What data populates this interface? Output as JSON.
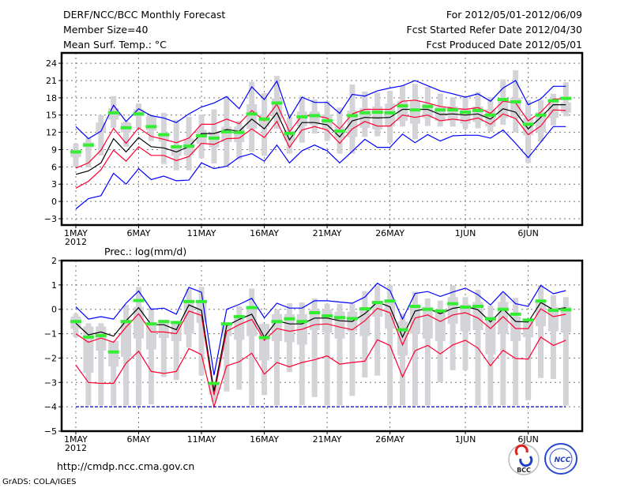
{
  "header": {
    "title": "DERF/NCC/BCC Monthly Forecast",
    "member_size": "Member Size=40",
    "for_range": "For 2012/05/01-2012/06/09",
    "started_refer": "Fcst Started Refer Date 2012/04/30",
    "produced": "Fcst Produced Date 2012/05/01"
  },
  "footer": {
    "url": "http://cmdp.ncc.cma.gov.cn",
    "credit": "GrADS: COLA/IGES",
    "logo_bcc": "BCC",
    "logo_ncc": "NCC"
  },
  "colors": {
    "ens_max_min": "#0000ff",
    "ens_quartile": "#ff0033",
    "ens_mean": "#000000",
    "observed": "#33ee33",
    "bar": "#d4d4d8"
  },
  "chart_data": [
    {
      "type": "line",
      "title": "Mean Surf. Temp.: °C",
      "xlabel": "",
      "ylabel": "",
      "x_days_from": "2012-05-01",
      "xlim": [
        -1.13,
        40.3
      ],
      "ylim": [
        -4.1,
        25.8
      ],
      "yticks": [
        -3,
        0,
        3,
        6,
        9,
        12,
        15,
        18,
        21,
        24
      ],
      "xticks": [
        {
          "day": 0,
          "label": "1MAY",
          "sub": "2012"
        },
        {
          "day": 5,
          "label": "6MAY"
        },
        {
          "day": 10,
          "label": "11MAY"
        },
        {
          "day": 15,
          "label": "16MAY"
        },
        {
          "day": 20,
          "label": "21MAY"
        },
        {
          "day": 25,
          "label": "26MAY"
        },
        {
          "day": 31,
          "label": "1JUN"
        },
        {
          "day": 36,
          "label": "6JUN"
        }
      ],
      "grid": true,
      "bars_min_q1_q3_max": [
        [
          6.0,
          7.7,
          8.9,
          10.1
        ],
        [
          5.9,
          9.4,
          10.3,
          11.0
        ],
        [
          8.0,
          12.0,
          13.7,
          15.0
        ],
        [
          12.8,
          14.2,
          16.2,
          18.3
        ],
        [
          9.5,
          12.0,
          13.7,
          13.9
        ],
        [
          12.7,
          14.8,
          16.0,
          17.0
        ],
        [
          10.5,
          12.3,
          14.8,
          15.1
        ],
        [
          6.5,
          10.4,
          11.7,
          15.4
        ],
        [
          5.4,
          7.9,
          9.7,
          14.2
        ],
        [
          5.4,
          8.0,
          10.9,
          14.7
        ],
        [
          7.5,
          10.0,
          12.4,
          15.1
        ],
        [
          6.6,
          9.4,
          12.0,
          16.0
        ],
        [
          6.1,
          10.3,
          13.0,
          18.3
        ],
        [
          7.3,
          10.3,
          13.0,
          14.0
        ],
        [
          8.6,
          12.6,
          16.9,
          20.8
        ],
        [
          7.9,
          13.0,
          15.0,
          18.8
        ],
        [
          12.6,
          14.3,
          17.9,
          21.8
        ],
        [
          8.3,
          10.5,
          12.3,
          14.6
        ],
        [
          10.2,
          13.1,
          15.6,
          18.3
        ],
        [
          11.8,
          13.3,
          15.6,
          17.7
        ],
        [
          10.5,
          12.6,
          15.1,
          17.4
        ],
        [
          8.3,
          11.0,
          13.0,
          16.3
        ],
        [
          8.3,
          11.2,
          15.8,
          20.3
        ],
        [
          11.2,
          12.8,
          16.2,
          19.1
        ],
        [
          11.3,
          12.5,
          16.5,
          18.9
        ],
        [
          10.2,
          13.0,
          17.0,
          19.2
        ],
        [
          13.0,
          14.0,
          17.5,
          20.1
        ],
        [
          10.8,
          13.5,
          17.5,
          20.4
        ],
        [
          13.1,
          14.5,
          17.0,
          19.9
        ],
        [
          13.0,
          14.0,
          16.5,
          18.7
        ],
        [
          13.0,
          14.0,
          16.5,
          18.1
        ],
        [
          12.6,
          13.5,
          16.0,
          18.1
        ],
        [
          12.7,
          13.8,
          16.5,
          19.0
        ],
        [
          12.1,
          13.0,
          16.0,
          18.1
        ],
        [
          13.3,
          14.5,
          17.8,
          21.2
        ],
        [
          12.0,
          14.5,
          18.0,
          22.8
        ],
        [
          6.7,
          11.5,
          14.5,
          17.6
        ],
        [
          10.4,
          12.0,
          15.5,
          17.6
        ],
        [
          13.2,
          14.5,
          17.5,
          18.7
        ],
        [
          14.8,
          15.4,
          17.2,
          20.7
        ]
      ],
      "series": [
        {
          "name": "max",
          "color": "#0000ff",
          "values": [
            13.0,
            10.9,
            12.2,
            16.7,
            13.9,
            16.1,
            14.9,
            14.5,
            13.7,
            15.2,
            16.4,
            17.1,
            18.2,
            16.1,
            19.9,
            17.7,
            20.9,
            14.5,
            18.1,
            17.2,
            17.2,
            15.3,
            18.6,
            18.3,
            19.2,
            19.7,
            20.1,
            21.0,
            20.1,
            19.2,
            18.7,
            18.1,
            18.7,
            17.4,
            19.7,
            21.0,
            16.8,
            17.8,
            20.0,
            20.0
          ]
        },
        {
          "name": "upper",
          "color": "#ff0033",
          "values": [
            5.8,
            6.7,
            8.9,
            12.7,
            10.1,
            12.8,
            11.3,
            10.8,
            10.2,
            11.0,
            13.4,
            13.4,
            14.3,
            13.5,
            15.8,
            14.0,
            16.9,
            12.1,
            14.9,
            14.9,
            14.5,
            12.6,
            15.2,
            16.0,
            16.0,
            16.0,
            17.4,
            17.6,
            17.1,
            16.5,
            16.2,
            16.0,
            16.3,
            15.3,
            17.4,
            17.1,
            14.0,
            15.5,
            17.8,
            17.8
          ]
        },
        {
          "name": "mean",
          "color": "#000000",
          "values": [
            4.7,
            5.3,
            6.7,
            10.9,
            8.6,
            11.1,
            9.5,
            9.3,
            8.6,
            9.5,
            11.8,
            11.8,
            12.5,
            12.2,
            14.3,
            12.6,
            15.4,
            10.7,
            13.7,
            13.7,
            13.3,
            11.2,
            14.0,
            14.6,
            14.5,
            14.6,
            16.0,
            16.0,
            16.0,
            15.1,
            15.2,
            15.0,
            15.2,
            14.3,
            16.1,
            15.5,
            12.6,
            14.6,
            16.8,
            16.8
          ]
        },
        {
          "name": "lower",
          "color": "#ff0033",
          "values": [
            2.3,
            3.5,
            5.5,
            8.9,
            7.0,
            9.5,
            8.0,
            8.0,
            7.1,
            7.8,
            10.1,
            9.9,
            10.9,
            11.0,
            12.6,
            11.1,
            13.9,
            9.4,
            12.4,
            13.0,
            12.4,
            10.1,
            12.6,
            13.9,
            13.1,
            13.1,
            15.0,
            14.6,
            15.0,
            14.0,
            14.3,
            14.0,
            14.5,
            13.4,
            15.2,
            14.4,
            11.6,
            13.1,
            15.9,
            15.8
          ]
        },
        {
          "name": "min",
          "color": "#0000ff",
          "values": [
            -1.3,
            0.5,
            1.0,
            4.9,
            3.0,
            5.7,
            3.8,
            4.4,
            3.6,
            3.7,
            6.7,
            5.7,
            6.1,
            7.7,
            8.3,
            7.0,
            9.8,
            6.7,
            8.8,
            9.8,
            8.8,
            6.7,
            8.7,
            10.8,
            9.4,
            9.4,
            11.7,
            10.2,
            11.6,
            10.5,
            11.4,
            11.5,
            11.5,
            11.0,
            12.4,
            10.1,
            7.6,
            10.3,
            13.0,
            13.0
          ]
        }
      ],
      "observed": [
        8.6,
        9.8,
        null,
        15.4,
        12.8,
        15.2,
        13.0,
        11.6,
        9.5,
        9.6,
        11.4,
        11.0,
        12.1,
        12.0,
        15.2,
        14.3,
        17.1,
        11.8,
        14.7,
        14.9,
        14.0,
        12.2,
        14.9,
        15.4,
        15.5,
        15.4,
        16.6,
        15.9,
        16.5,
        15.9,
        15.9,
        15.5,
        15.8,
        15.0,
        17.7,
        17.3,
        13.4,
        15.0,
        17.5,
        17.9
      ]
    },
    {
      "type": "line",
      "title": "Prec.: log(mm/d)",
      "xlabel": "",
      "ylabel": "",
      "x_days_from": "2012-05-01",
      "xlim": [
        -1.13,
        40.3
      ],
      "ylim": [
        -5,
        2
      ],
      "yticks": [
        -5,
        -4,
        -3,
        -2,
        -1,
        0,
        1,
        2
      ],
      "xticks": [
        {
          "day": 0,
          "label": "1MAY",
          "sub": "2012"
        },
        {
          "day": 5,
          "label": "6MAY"
        },
        {
          "day": 10,
          "label": "11MAY"
        },
        {
          "day": 15,
          "label": "16MAY"
        },
        {
          "day": 20,
          "label": "21MAY"
        },
        {
          "day": 25,
          "label": "26MAY"
        },
        {
          "day": 31,
          "label": "1JUN"
        },
        {
          "day": 36,
          "label": "6JUN"
        }
      ],
      "grid": true,
      "bars_min_q1_q3_max": [
        [
          -1.14,
          -0.8,
          -0.3,
          -0.18
        ],
        [
          -3.95,
          -2.6,
          -0.7,
          -0.57
        ],
        [
          -3.95,
          -1.7,
          -0.7,
          -0.57
        ],
        [
          -3.95,
          -2.35,
          -1.3,
          -1.3
        ],
        [
          -3.95,
          -1.95,
          -0.5,
          0.18
        ],
        [
          -3.95,
          -1.2,
          0.1,
          0.92
        ],
        [
          -3.9,
          -1.65,
          -0.6,
          0.07
        ],
        [
          -2.78,
          -1.18,
          -0.5,
          -0.5
        ],
        [
          -2.9,
          -1.3,
          -0.5,
          -0.5
        ],
        [
          -1.57,
          -1.0,
          0.3,
          0.85
        ],
        [
          -2.72,
          -0.55,
          0.3,
          0.92
        ],
        [
          -3.8,
          -3.5,
          -3.0,
          -2.98
        ],
        [
          -3.37,
          -1.1,
          -0.55,
          -0.55
        ],
        [
          -3.3,
          -1.25,
          -0.3,
          0.12
        ],
        [
          -3.95,
          -1.1,
          0.1,
          0.85
        ],
        [
          -3.52,
          -2.1,
          -0.6,
          -0.6
        ],
        [
          -3.95,
          -1.3,
          -0.2,
          0.0
        ],
        [
          -2.58,
          -1.35,
          -0.2,
          0.25
        ],
        [
          -3.93,
          -1.45,
          -0.2,
          0.28
        ],
        [
          -3.6,
          -0.85,
          0.0,
          0.45
        ],
        [
          -3.95,
          -0.95,
          0.0,
          0.23
        ],
        [
          -3.95,
          -1.2,
          -0.1,
          0.23
        ],
        [
          -3.55,
          -0.9,
          -0.1,
          0.23
        ],
        [
          -2.8,
          -1.1,
          0.0,
          0.75
        ],
        [
          -2.72,
          -0.3,
          0.35,
          0.98
        ],
        [
          -3.95,
          -0.8,
          0.4,
          1.0
        ],
        [
          -3.95,
          -1.9,
          -0.5,
          -0.18
        ],
        [
          -3.95,
          -1.0,
          0.2,
          0.72
        ],
        [
          -3.95,
          -1.2,
          0.1,
          0.45
        ],
        [
          -3.0,
          -1.3,
          0.0,
          0.36
        ],
        [
          -2.5,
          -0.6,
          0.5,
          0.98
        ],
        [
          -2.5,
          -0.9,
          0.2,
          0.5
        ],
        [
          -3.95,
          -0.85,
          0.3,
          0.8
        ],
        [
          -3.95,
          -1.85,
          -0.3,
          0.15
        ],
        [
          -3.95,
          -1.0,
          0.3,
          0.65
        ],
        [
          -3.95,
          -1.3,
          -0.3,
          0.47
        ],
        [
          -3.73,
          -1.15,
          -0.5,
          -0.47
        ],
        [
          -2.82,
          -0.7,
          0.4,
          1.0
        ],
        [
          -2.86,
          -0.9,
          0.1,
          0.57
        ],
        [
          -3.95,
          -0.95,
          0.1,
          0.5
        ]
      ],
      "series": [
        {
          "name": "max",
          "color": "#0000ff",
          "values": [
            0.1,
            -0.4,
            -0.3,
            -0.4,
            0.25,
            0.75,
            0.0,
            0.05,
            -0.2,
            0.9,
            0.7,
            -2.7,
            0.0,
            0.2,
            0.45,
            -0.35,
            0.25,
            0.05,
            0.05,
            0.35,
            0.35,
            0.3,
            0.25,
            0.5,
            1.07,
            0.77,
            -0.4,
            0.65,
            0.73,
            0.53,
            0.71,
            0.87,
            0.6,
            0.18,
            0.73,
            0.23,
            0.12,
            0.98,
            0.64,
            0.77
          ]
        },
        {
          "name": "upper",
          "color": "#ff0033",
          "values": [
            -1.0,
            -1.35,
            -1.18,
            -1.35,
            -0.73,
            -0.18,
            -0.93,
            -0.93,
            -1.0,
            -0.07,
            -0.25,
            -3.52,
            -0.9,
            -0.63,
            -0.41,
            -1.27,
            -0.79,
            -0.9,
            -0.82,
            -0.63,
            -0.6,
            -0.73,
            -0.84,
            -0.47,
            0.04,
            -0.14,
            -1.46,
            -0.36,
            -0.23,
            -0.5,
            -0.23,
            -0.14,
            -0.36,
            -0.79,
            -0.3,
            -0.79,
            -0.79,
            0.02,
            -0.3,
            -0.2
          ]
        },
        {
          "name": "mean",
          "color": "#000000",
          "values": [
            -0.57,
            -1.05,
            -0.93,
            -1.1,
            -0.47,
            0.07,
            -0.63,
            -0.63,
            -0.84,
            0.18,
            -0.04,
            -3.36,
            -0.68,
            -0.41,
            -0.2,
            -1.14,
            -0.47,
            -0.6,
            -0.6,
            -0.36,
            -0.36,
            -0.47,
            -0.5,
            -0.18,
            0.3,
            0.1,
            -1.14,
            -0.07,
            0.04,
            -0.18,
            0.04,
            0.12,
            -0.02,
            -0.52,
            0.02,
            -0.5,
            -0.52,
            0.28,
            -0.02,
            0.07
          ]
        },
        {
          "name": "lower",
          "color": "#ff0033",
          "values": [
            -2.29,
            -3.0,
            -3.04,
            -3.04,
            -2.21,
            -1.72,
            -2.55,
            -2.63,
            -2.55,
            -1.61,
            -1.86,
            -4.0,
            -2.32,
            -2.15,
            -1.8,
            -2.66,
            -2.18,
            -2.36,
            -2.18,
            -2.07,
            -1.91,
            -2.25,
            -2.18,
            -2.13,
            -1.25,
            -1.48,
            -2.77,
            -1.7,
            -1.48,
            -1.83,
            -1.46,
            -1.27,
            -1.59,
            -2.32,
            -1.68,
            -2.02,
            -2.04,
            -1.14,
            -1.48,
            -1.27
          ]
        },
        {
          "name": "min",
          "color": "#0000aa",
          "dashed": true,
          "values": [
            -4,
            -4,
            -4,
            -4,
            -4,
            -4,
            -4,
            -4,
            -4,
            -4,
            -4,
            -4,
            -4,
            -4,
            -4,
            -4,
            -4,
            -4,
            -4,
            -4,
            -4,
            -4,
            -4,
            -4,
            -4,
            -4,
            -4,
            -4,
            -4,
            -4,
            -4,
            -4,
            -4,
            -4,
            -4,
            -4,
            -4,
            -4,
            -4,
            -4
          ]
        }
      ],
      "observed": [
        -0.5,
        -1.14,
        -1.08,
        -1.75,
        -0.5,
        0.36,
        -0.6,
        -0.5,
        -0.54,
        0.32,
        0.32,
        -3.04,
        -0.6,
        -0.3,
        0.07,
        -1.16,
        -0.5,
        -0.39,
        -0.5,
        -0.14,
        -0.27,
        -0.34,
        -0.38,
        0.02,
        0.28,
        0.34,
        -0.84,
        0.12,
        0.0,
        -0.07,
        0.23,
        0.09,
        0.12,
        -0.39,
        0.0,
        -0.2,
        -0.44,
        0.34,
        -0.04,
        -0.02
      ]
    }
  ]
}
